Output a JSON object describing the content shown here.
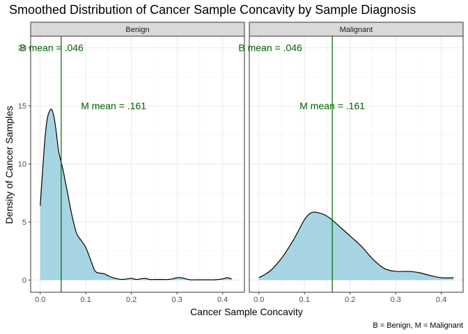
{
  "chart_data": {
    "type": "area",
    "title": "Smoothed Distribution of Cancer Sample Concavity by Sample Diagnosis",
    "xlabel": "Cancer Sample Concavity",
    "ylabel": "Density of Cancer Samples",
    "caption": "B = Benign, M = Malignant",
    "xlim": [
      -0.021,
      0.448
    ],
    "ylim": [
      -1.05,
      21.0
    ],
    "x_ticks": [
      0.0,
      0.1,
      0.2,
      0.3,
      0.4
    ],
    "x_tick_labels": [
      "0.0",
      "0.1",
      "0.2",
      "0.3",
      "0.4"
    ],
    "y_ticks": [
      0,
      5,
      10,
      15,
      20
    ],
    "y_tick_labels": [
      "0",
      "5",
      "10",
      "15",
      "20"
    ],
    "grid": true,
    "fill_color": "#a6d4e3",
    "line_color": "#000000",
    "vline_color": "#006400",
    "strip_fill": "#d9d9d9",
    "panels": [
      {
        "name": "Benign",
        "x": [
          0.0,
          0.005,
          0.01,
          0.015,
          0.02,
          0.025,
          0.03,
          0.035,
          0.04,
          0.045,
          0.05,
          0.055,
          0.06,
          0.07,
          0.08,
          0.09,
          0.1,
          0.11,
          0.12,
          0.13,
          0.14,
          0.15,
          0.16,
          0.17,
          0.18,
          0.19,
          0.2,
          0.21,
          0.22,
          0.23,
          0.24,
          0.25,
          0.26,
          0.27,
          0.28,
          0.29,
          0.3,
          0.31,
          0.32,
          0.33,
          0.34,
          0.35,
          0.36,
          0.37,
          0.38,
          0.39,
          0.4,
          0.41,
          0.42
        ],
        "y": [
          6.4,
          9.3,
          12.0,
          13.8,
          14.5,
          14.7,
          14.1,
          12.8,
          11.2,
          10.3,
          9.5,
          8.5,
          7.5,
          5.5,
          4.0,
          3.4,
          2.8,
          1.8,
          0.8,
          0.6,
          0.55,
          0.35,
          0.2,
          0.1,
          0.05,
          0.1,
          0.15,
          0.05,
          0.1,
          0.15,
          0.05,
          0.05,
          0.05,
          0.05,
          0.05,
          0.1,
          0.2,
          0.2,
          0.1,
          0.02,
          0.02,
          0.02,
          0.02,
          0.02,
          0.02,
          0.05,
          0.1,
          0.2,
          0.1
        ],
        "mean": 0.046,
        "annotations": [
          {
            "text": "B mean = .046",
            "x": 0.025,
            "y": 20.0
          },
          {
            "text": "M mean = .161",
            "x": 0.161,
            "y": 15.0
          }
        ]
      },
      {
        "name": "Malignant",
        "x": [
          0.0,
          0.025,
          0.05,
          0.075,
          0.1,
          0.115,
          0.13,
          0.145,
          0.16,
          0.18,
          0.2,
          0.225,
          0.25,
          0.275,
          0.3,
          0.325,
          0.35,
          0.375,
          0.4,
          0.427
        ],
        "y": [
          0.2,
          0.8,
          1.9,
          3.4,
          5.2,
          5.8,
          5.8,
          5.6,
          5.2,
          4.5,
          3.8,
          2.9,
          1.8,
          1.0,
          0.75,
          0.75,
          0.65,
          0.4,
          0.2,
          0.2
        ],
        "mean": 0.161,
        "annotations": [
          {
            "text": "B mean = .046",
            "x": 0.025,
            "y": 20.0
          },
          {
            "text": "M mean = .161",
            "x": 0.161,
            "y": 15.0
          }
        ]
      }
    ]
  }
}
